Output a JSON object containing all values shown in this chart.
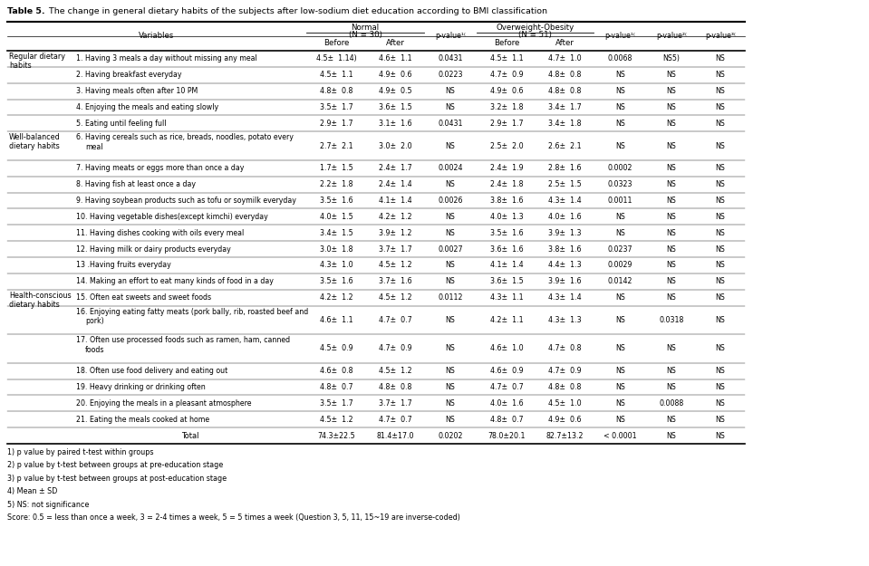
{
  "title_bold": "Table 5.",
  "title_rest": " The change in general dietary habits of the subjects after low-sodium diet education according to BMI classification",
  "rows": [
    {
      "cat": "Regular dietary\nhabits",
      "desc": "1. Having 3 meals a day without missing any meal",
      "nb": "4.5±  1.14)",
      "na": "4.6±  1.1",
      "np": "0.0431",
      "ob": "4.5±  1.1",
      "oa": "4.7±  1.0",
      "op": "0.0068",
      "p2": "NS5)",
      "p3": "NS",
      "ml": false
    },
    {
      "cat": "",
      "desc": "2. Having breakfast everyday",
      "nb": "4.5±  1.1",
      "na": "4.9±  0.6",
      "np": "0.0223",
      "ob": "4.7±  0.9",
      "oa": "4.8±  0.8",
      "op": "NS",
      "p2": "NS",
      "p3": "NS",
      "ml": false
    },
    {
      "cat": "",
      "desc": "3. Having meals often after 10 PM",
      "nb": "4.8±  0.8",
      "na": "4.9±  0.5",
      "np": "NS",
      "ob": "4.9±  0.6",
      "oa": "4.8±  0.8",
      "op": "NS",
      "p2": "NS",
      "p3": "NS",
      "ml": false
    },
    {
      "cat": "",
      "desc": "4. Enjoying the meals and eating slowly",
      "nb": "3.5±  1.7",
      "na": "3.6±  1.5",
      "np": "NS",
      "ob": "3.2±  1.8",
      "oa": "3.4±  1.7",
      "op": "NS",
      "p2": "NS",
      "p3": "NS",
      "ml": false
    },
    {
      "cat": "",
      "desc": "5. Eating until feeling full",
      "nb": "2.9±  1.7",
      "na": "3.1±  1.6",
      "np": "0.0431",
      "ob": "2.9±  1.7",
      "oa": "3.4±  1.8",
      "op": "NS",
      "p2": "NS",
      "p3": "NS",
      "ml": false
    },
    {
      "cat": "Well-balanced\ndietary habits",
      "desc": "6. Having cereals such as rice, breads, noodles, potato every\nmeal",
      "nb": "2.7±  2.1",
      "na": "3.0±  2.0",
      "np": "NS",
      "ob": "2.5±  2.0",
      "oa": "2.6±  2.1",
      "op": "NS",
      "p2": "NS",
      "p3": "NS",
      "ml": true
    },
    {
      "cat": "",
      "desc": "7. Having meats or eggs more than once a day",
      "nb": "1.7±  1.5",
      "na": "2.4±  1.7",
      "np": "0.0024",
      "ob": "2.4±  1.9",
      "oa": "2.8±  1.6",
      "op": "0.0002",
      "p2": "NS",
      "p3": "NS",
      "ml": false
    },
    {
      "cat": "",
      "desc": "8. Having fish at least once a day",
      "nb": "2.2±  1.8",
      "na": "2.4±  1.4",
      "np": "NS",
      "ob": "2.4±  1.8",
      "oa": "2.5±  1.5",
      "op": "0.0323",
      "p2": "NS",
      "p3": "NS",
      "ml": false
    },
    {
      "cat": "",
      "desc": "9. Having soybean products such as tofu or soymilk everyday",
      "nb": "3.5±  1.6",
      "na": "4.1±  1.4",
      "np": "0.0026",
      "ob": "3.8±  1.6",
      "oa": "4.3±  1.4",
      "op": "0.0011",
      "p2": "NS",
      "p3": "NS",
      "ml": false
    },
    {
      "cat": "",
      "desc": "10. Having vegetable dishes(except kimchi) everyday",
      "nb": "4.0±  1.5",
      "na": "4.2±  1.2",
      "np": "NS",
      "ob": "4.0±  1.3",
      "oa": "4.0±  1.6",
      "op": "NS",
      "p2": "NS",
      "p3": "NS",
      "ml": false
    },
    {
      "cat": "",
      "desc": "11. Having dishes cooking with oils every meal",
      "nb": "3.4±  1.5",
      "na": "3.9±  1.2",
      "np": "NS",
      "ob": "3.5±  1.6",
      "oa": "3.9±  1.3",
      "op": "NS",
      "p2": "NS",
      "p3": "NS",
      "ml": false
    },
    {
      "cat": "",
      "desc": "12. Having milk or dairy products everyday",
      "nb": "3.0±  1.8",
      "na": "3.7±  1.7",
      "np": "0.0027",
      "ob": "3.6±  1.6",
      "oa": "3.8±  1.6",
      "op": "0.0237",
      "p2": "NS",
      "p3": "NS",
      "ml": false
    },
    {
      "cat": "",
      "desc": "13 .Having fruits everyday",
      "nb": "4.3±  1.0",
      "na": "4.5±  1.2",
      "np": "NS",
      "ob": "4.1±  1.4",
      "oa": "4.4±  1.3",
      "op": "0.0029",
      "p2": "NS",
      "p3": "NS",
      "ml": false
    },
    {
      "cat": "",
      "desc": "14. Making an effort to eat many kinds of food in a day",
      "nb": "3.5±  1.6",
      "na": "3.7±  1.6",
      "np": "NS",
      "ob": "3.6±  1.5",
      "oa": "3.9±  1.6",
      "op": "0.0142",
      "p2": "NS",
      "p3": "NS",
      "ml": false
    },
    {
      "cat": "Health-conscious\ndietary habits",
      "desc": "15. Often eat sweets and sweet foods",
      "nb": "4.2±  1.2",
      "na": "4.5±  1.2",
      "np": "0.0112",
      "ob": "4.3±  1.1",
      "oa": "4.3±  1.4",
      "op": "NS",
      "p2": "NS",
      "p3": "NS",
      "ml": false
    },
    {
      "cat": "",
      "desc": "16. Enjoying eating fatty meats (pork bally, rib, roasted beef and\npork)",
      "nb": "4.6±  1.1",
      "na": "4.7±  0.7",
      "np": "NS",
      "ob": "4.2±  1.1",
      "oa": "4.3±  1.3",
      "op": "NS",
      "p2": "0.0318",
      "p3": "NS",
      "ml": true
    },
    {
      "cat": "",
      "desc": "17. Often use processed foods such as ramen, ham, canned\nfoods",
      "nb": "4.5±  0.9",
      "na": "4.7±  0.9",
      "np": "NS",
      "ob": "4.6±  1.0",
      "oa": "4.7±  0.8",
      "op": "NS",
      "p2": "NS",
      "p3": "NS",
      "ml": true
    },
    {
      "cat": "",
      "desc": "18. Often use food delivery and eating out",
      "nb": "4.6±  0.8",
      "na": "4.5±  1.2",
      "np": "NS",
      "ob": "4.6±  0.9",
      "oa": "4.7±  0.9",
      "op": "NS",
      "p2": "NS",
      "p3": "NS",
      "ml": false
    },
    {
      "cat": "",
      "desc": "19. Heavy drinking or drinking often",
      "nb": "4.8±  0.7",
      "na": "4.8±  0.8",
      "np": "NS",
      "ob": "4.7±  0.7",
      "oa": "4.8±  0.8",
      "op": "NS",
      "p2": "NS",
      "p3": "NS",
      "ml": false
    },
    {
      "cat": "",
      "desc": "20. Enjoying the meals in a pleasant atmosphere",
      "nb": "3.5±  1.7",
      "na": "3.7±  1.7",
      "np": "NS",
      "ob": "4.0±  1.6",
      "oa": "4.5±  1.0",
      "op": "NS",
      "p2": "0.0088",
      "p3": "NS",
      "ml": false
    },
    {
      "cat": "",
      "desc": "21. Eating the meals cooked at home",
      "nb": "4.5±  1.2",
      "na": "4.7±  0.7",
      "np": "NS",
      "ob": "4.8±  0.7",
      "oa": "4.9±  0.6",
      "op": "NS",
      "p2": "NS",
      "p3": "NS",
      "ml": false
    },
    {
      "cat": "__total__",
      "desc": "Total",
      "nb": "74.3±22.5",
      "na": "81.4±17.0",
      "np": "0.0202",
      "ob": "78.0±20.1",
      "oa": "82.7±13.2",
      "op": "< 0.0001",
      "p2": "NS",
      "p3": "NS",
      "ml": false
    }
  ],
  "footnotes": [
    "1) p value by paired t-test within groups",
    "2) p value by t-test between groups at pre-education stage",
    "3) p value by t-test between groups at post-education stage",
    "4) Mean ± SD",
    "5) NS: not significance",
    "Score: 0.5 = less than once a week, 3 = 2-4 times a week, 5 = 5 times a week (Question 3, 5, 11, 15~19 are inverse-coded)"
  ]
}
